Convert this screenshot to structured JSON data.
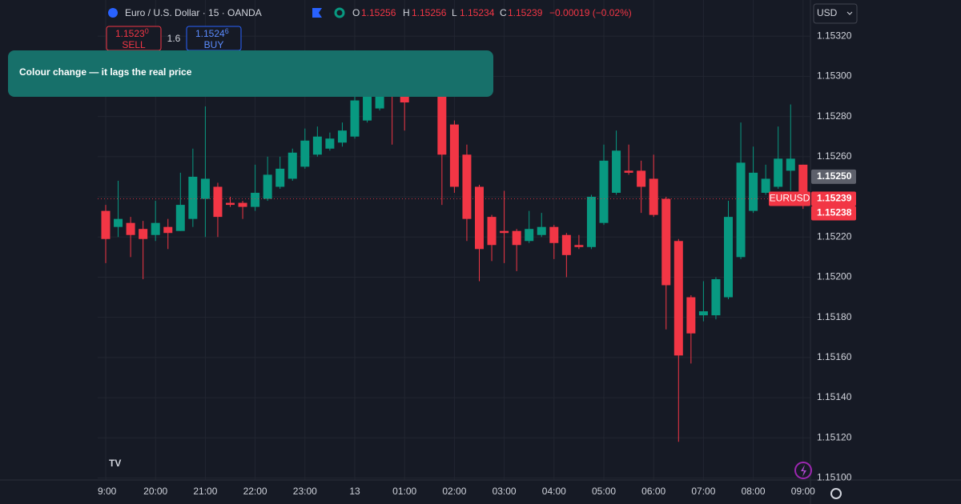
{
  "header": {
    "symbol": "Euro / U.S. Dollar · 15 · OANDA",
    "ohlc": [
      {
        "key": "O",
        "value": "1.15256"
      },
      {
        "key": "H",
        "value": "1.15256"
      },
      {
        "key": "L",
        "value": "1.15234"
      },
      {
        "key": "C",
        "value": "1.15239"
      }
    ],
    "change": "−0.00019 (−0.02%)",
    "currency": "USD"
  },
  "trade_panel": {
    "sell_price": "1.1523",
    "sell_pip": "0",
    "sell_label": "SELL",
    "spread": "1.6",
    "buy_price": "1.1524",
    "buy_pip": "6",
    "buy_label": "BUY"
  },
  "banner": {
    "text": "Colour change  —  it lags the real price"
  },
  "chart_data": {
    "type": "candlestick",
    "categories": [
      "9:00",
      null,
      null,
      null,
      "20:00",
      null,
      null,
      null,
      "21:00",
      null,
      null,
      null,
      "22:00",
      null,
      null,
      null,
      "23:00",
      null,
      null,
      null,
      "13",
      null,
      null,
      null,
      "01:00",
      null,
      null,
      null,
      "02:00",
      null,
      null,
      null,
      "03:00",
      null,
      null,
      null,
      "04:00",
      null,
      null,
      null,
      "05:00",
      null,
      null,
      null,
      "06:00",
      null,
      null,
      null,
      "07:00",
      null,
      null,
      null,
      "08:00",
      null,
      null,
      null,
      "09:00"
    ],
    "open": [
      1.15233,
      1.15225,
      1.15227,
      1.15224,
      1.15221,
      1.15225,
      1.15223,
      1.15229,
      1.15239,
      1.15245,
      1.15237,
      1.15237,
      1.15235,
      1.15239,
      1.15245,
      1.15249,
      1.15255,
      1.15261,
      1.15264,
      1.15267,
      1.1527,
      1.15278,
      1.15284,
      1.15296,
      1.15298,
      1.15292,
      1.15297,
      1.15292,
      1.15276,
      1.15261,
      1.15245,
      1.1523,
      1.15223,
      1.15223,
      1.15218,
      1.15221,
      1.15225,
      1.15221,
      1.15216,
      1.15215,
      1.15227,
      1.15242,
      1.15253,
      1.15253,
      1.15249,
      1.15239,
      1.15218,
      1.1519,
      1.15181,
      1.15181,
      1.1519,
      1.1521,
      1.15233,
      1.15242,
      1.15245,
      1.15253,
      1.15256
    ],
    "high": [
      1.15236,
      1.15248,
      1.1523,
      1.15228,
      1.15238,
      1.15229,
      1.15252,
      1.15264,
      1.15285,
      1.15247,
      1.1524,
      1.15238,
      1.15256,
      1.1526,
      1.1526,
      1.15264,
      1.15274,
      1.15275,
      1.15272,
      1.15277,
      1.15291,
      1.15298,
      1.15304,
      1.15302,
      1.15301,
      1.153,
      1.153,
      1.15294,
      1.15278,
      1.15266,
      1.15246,
      1.15231,
      1.15243,
      1.15224,
      1.15233,
      1.15232,
      1.15226,
      1.15222,
      1.15221,
      1.15241,
      1.15266,
      1.15273,
      1.15266,
      1.15258,
      1.15261,
      1.1524,
      1.15219,
      1.15191,
      1.15198,
      1.152,
      1.15238,
      1.15277,
      1.15265,
      1.15256,
      1.15275,
      1.15286,
      1.15256
    ],
    "low": [
      1.15207,
      1.1522,
      1.1521,
      1.15199,
      1.15218,
      1.15214,
      1.15223,
      1.15225,
      1.1522,
      1.1522,
      1.15235,
      1.15229,
      1.15233,
      1.15238,
      1.15244,
      1.15248,
      1.15254,
      1.1526,
      1.15263,
      1.15265,
      1.15269,
      1.15277,
      1.15283,
      1.15266,
      1.15273,
      1.15291,
      1.1529,
      1.15236,
      1.15242,
      1.15218,
      1.15198,
      1.15208,
      1.15207,
      1.15203,
      1.15217,
      1.1522,
      1.15209,
      1.152,
      1.15214,
      1.15214,
      1.15226,
      1.15241,
      1.15251,
      1.15232,
      1.1523,
      1.15174,
      1.15118,
      1.15157,
      1.15178,
      1.15179,
      1.15189,
      1.15209,
      1.15232,
      1.15241,
      1.15244,
      1.15243,
      1.15234
    ],
    "close": [
      1.15219,
      1.15229,
      1.15221,
      1.15219,
      1.15227,
      1.15222,
      1.15236,
      1.1525,
      1.15249,
      1.1523,
      1.15236,
      1.15235,
      1.15242,
      1.15251,
      1.15254,
      1.15262,
      1.15268,
      1.1527,
      1.15269,
      1.15273,
      1.15288,
      1.15294,
      1.15299,
      1.15293,
      1.15287,
      1.15298,
      1.15291,
      1.15261,
      1.15245,
      1.15229,
      1.15214,
      1.15216,
      1.15222,
      1.15216,
      1.15224,
      1.15225,
      1.15217,
      1.15211,
      1.15215,
      1.1524,
      1.15258,
      1.15263,
      1.15252,
      1.15245,
      1.15231,
      1.15196,
      1.15161,
      1.15172,
      1.15183,
      1.15199,
      1.1523,
      1.15257,
      1.15252,
      1.15249,
      1.15259,
      1.15259,
      1.15239
    ],
    "up_color": "#089981",
    "down_color": "#f23645",
    "ylim": [
      1.15099,
      1.15338
    ],
    "yticks": [
      {
        "value": 1.1532,
        "label": "1.15320"
      },
      {
        "value": 1.153,
        "label": "1.15300"
      },
      {
        "value": 1.1528,
        "label": "1.15280"
      },
      {
        "value": 1.1526,
        "label": "1.15260"
      },
      {
        "value": 1.1524,
        "label": "1.15240"
      },
      {
        "value": 1.1522,
        "label": "1.15220"
      },
      {
        "value": 1.152,
        "label": "1.15200"
      },
      {
        "value": 1.1518,
        "label": "1.15180"
      },
      {
        "value": 1.1516,
        "label": "1.15160"
      },
      {
        "value": 1.1514,
        "label": "1.15140"
      },
      {
        "value": 1.1512,
        "label": "1.15120"
      },
      {
        "value": 1.151,
        "label": "1.15100"
      }
    ],
    "grid": true,
    "price_tags": [
      {
        "value": 1.1525,
        "label": "1.15250",
        "color": "#5d606b"
      },
      {
        "value": 1.15239,
        "label": "1.15239",
        "color": "#f23645"
      },
      {
        "value": 1.15238,
        "label": "1.15238",
        "color": "#f23645"
      }
    ],
    "symbol_tag": "EURUSD"
  }
}
